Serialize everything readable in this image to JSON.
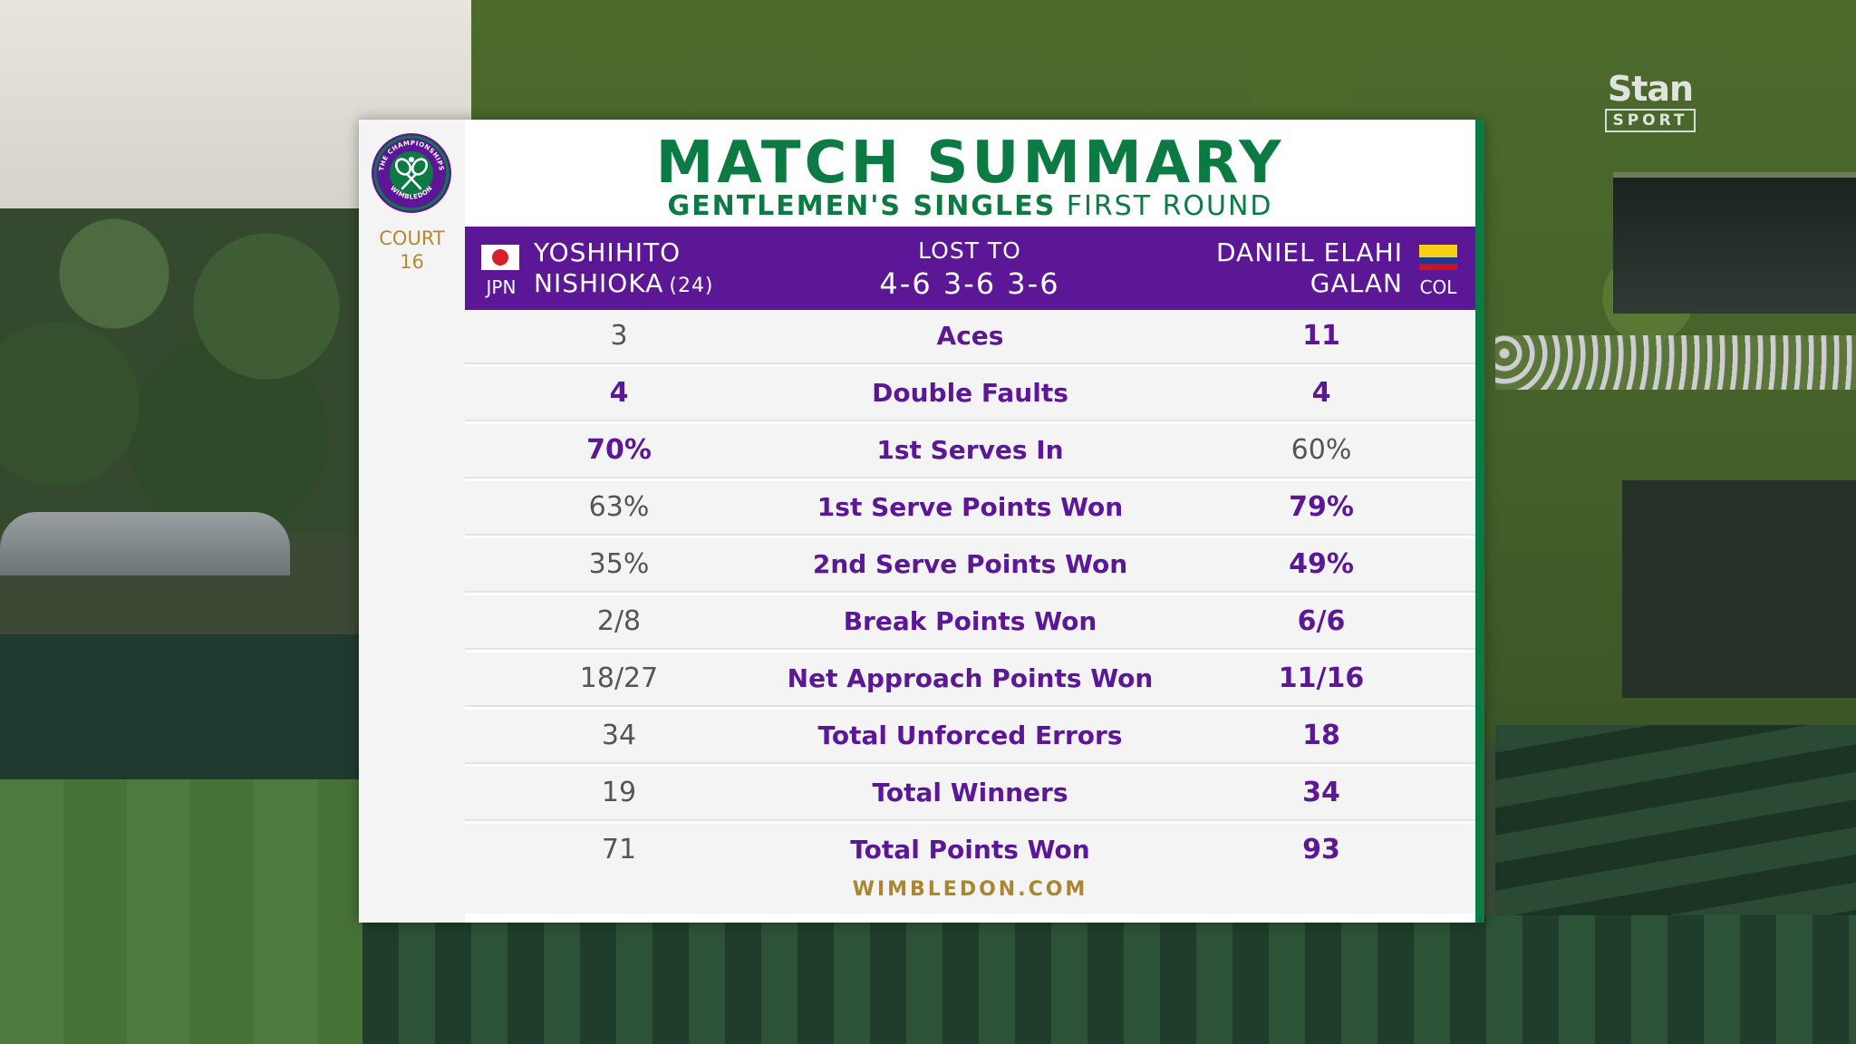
{
  "broadcaster": {
    "name": "Stan",
    "sub": "SPORT"
  },
  "panel": {
    "title": "MATCH SUMMARY",
    "subtitle_bold": "GENTLEMEN'S SINGLES",
    "subtitle_rest": "FIRST ROUND",
    "court_label": "COURT",
    "court_number": "16",
    "logo_text_top": "THE CHAMPIONSHIPS",
    "logo_text_bottom": "WIMBLEDON",
    "footer": "WIMBLEDON.COM"
  },
  "match": {
    "result_text": "LOST TO",
    "score": "4-6 3-6 3-6",
    "player1": {
      "first": "YOSHIHITO",
      "last": "NISHIOKA",
      "seed": "(24)",
      "country": "JPN"
    },
    "player2": {
      "first": "DANIEL ELAHI",
      "last": "GALAN",
      "country": "COL"
    }
  },
  "stats": [
    {
      "label": "Aces",
      "p1": "3",
      "p2": "11",
      "p1_win": false,
      "p2_win": true
    },
    {
      "label": "Double Faults",
      "p1": "4",
      "p2": "4",
      "p1_win": true,
      "p2_win": true
    },
    {
      "label": "1st Serves In",
      "p1": "70%",
      "p2": "60%",
      "p1_win": true,
      "p2_win": false
    },
    {
      "label": "1st Serve Points Won",
      "p1": "63%",
      "p2": "79%",
      "p1_win": false,
      "p2_win": true
    },
    {
      "label": "2nd Serve Points Won",
      "p1": "35%",
      "p2": "49%",
      "p1_win": false,
      "p2_win": true
    },
    {
      "label": "Break Points Won",
      "p1": "2/8",
      "p2": "6/6",
      "p1_win": false,
      "p2_win": true
    },
    {
      "label": "Net Approach Points Won",
      "p1": "18/27",
      "p2": "11/16",
      "p1_win": false,
      "p2_win": true
    },
    {
      "label": "Total Unforced Errors",
      "p1": "34",
      "p2": "18",
      "p1_win": false,
      "p2_win": true
    },
    {
      "label": "Total Winners",
      "p1": "19",
      "p2": "34",
      "p1_win": false,
      "p2_win": true
    },
    {
      "label": "Total Points Won",
      "p1": "71",
      "p2": "93",
      "p1_win": false,
      "p2_win": true
    }
  ],
  "colors": {
    "purple": "#5c1797",
    "green": "#0b7a43",
    "gold": "#b38a2e"
  }
}
